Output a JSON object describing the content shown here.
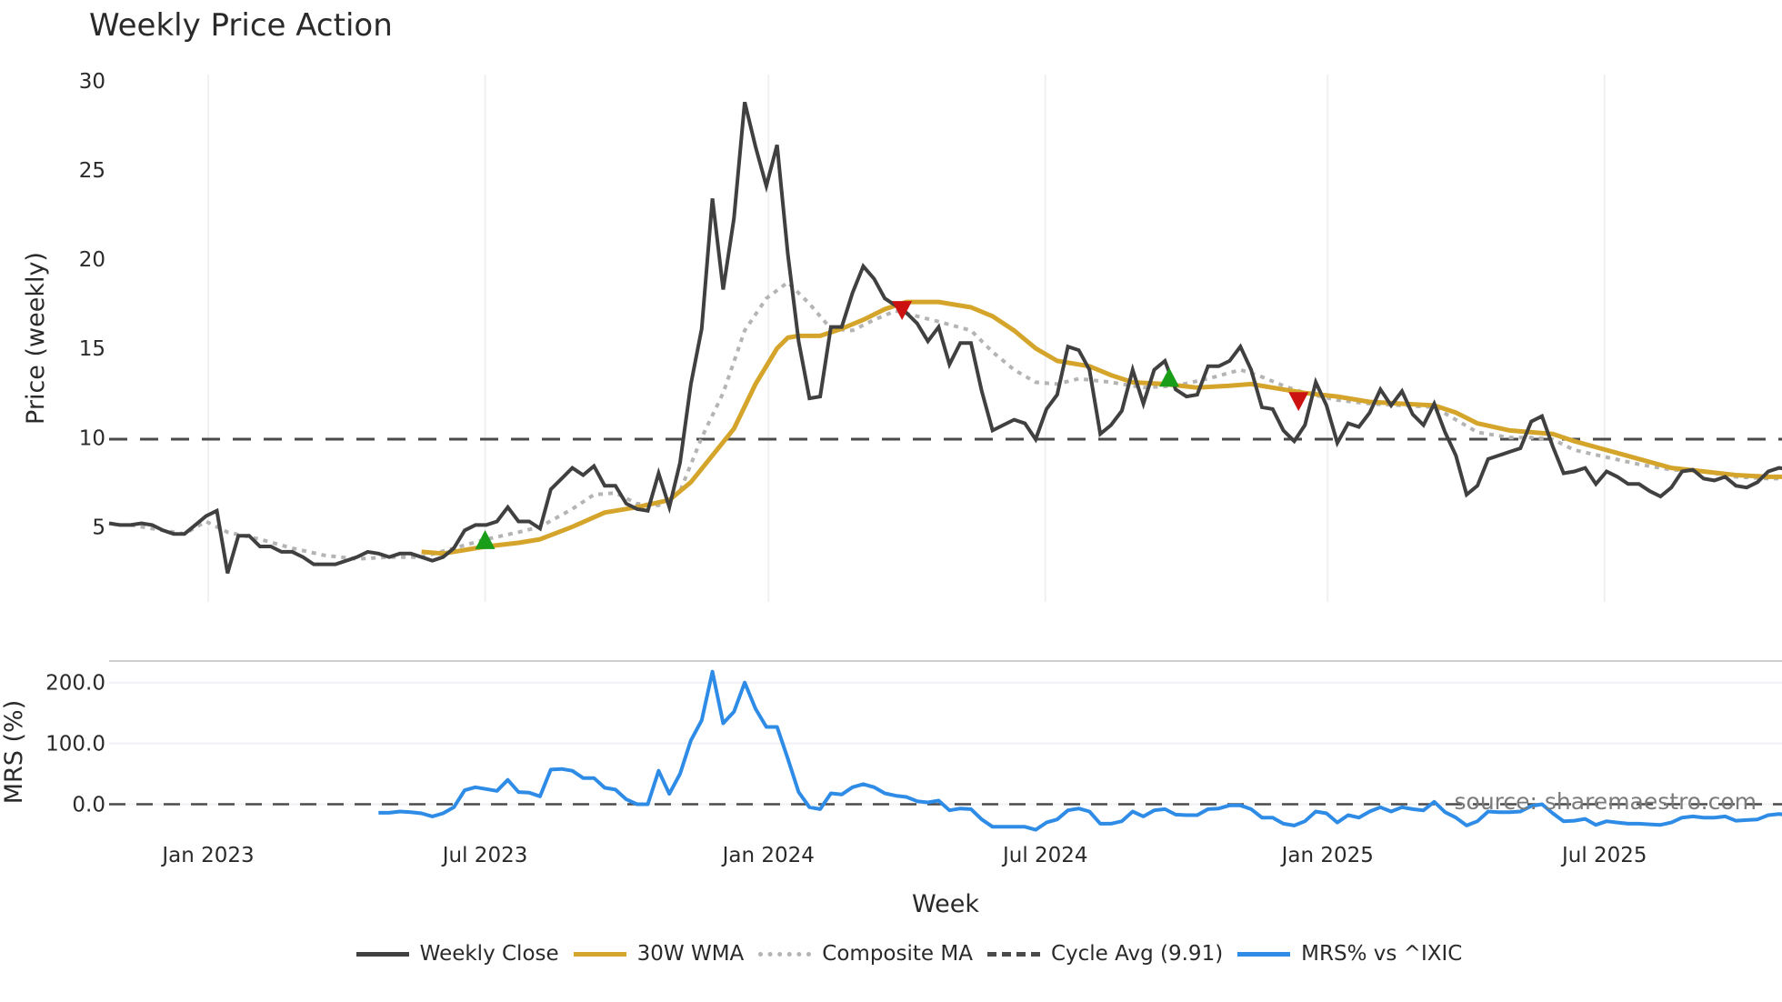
{
  "title": "Weekly Price Action",
  "watermark": "source: sharemaestro.com",
  "chart_data": [
    {
      "type": "line",
      "title": "Weekly Price Action",
      "xlabel": "Week",
      "ylabel": "Price (weekly)",
      "ylim": [
        0.5,
        30.5
      ],
      "yticks": [
        5,
        10,
        15,
        20,
        25,
        30
      ],
      "grid": true,
      "x_unit": "week_index",
      "x_ticks": [
        {
          "label": "Jan 2023",
          "week": 9.2
        },
        {
          "label": "Jul 2023",
          "week": 34.9
        },
        {
          "label": "Jan 2024",
          "week": 61.2
        },
        {
          "label": "Jul 2024",
          "week": 86.9
        },
        {
          "label": "Jan 2025",
          "week": 113.1
        },
        {
          "label": "Jul 2025",
          "week": 138.8
        }
      ],
      "series": [
        {
          "name": "Weekly Close",
          "color": "#404040",
          "style": "solid",
          "start_week": 0,
          "values": [
            5.2,
            5.1,
            5.1,
            5.2,
            5.1,
            4.8,
            4.6,
            4.6,
            5.1,
            5.6,
            5.9,
            2.4,
            4.5,
            4.5,
            3.9,
            3.9,
            3.6,
            3.6,
            3.3,
            2.9,
            2.9,
            2.9,
            3.1,
            3.3,
            3.6,
            3.5,
            3.3,
            3.5,
            3.5,
            3.3,
            3.1,
            3.3,
            3.8,
            4.8,
            5.1,
            5.1,
            5.3,
            6.1,
            5.3,
            5.3,
            4.9,
            7.1,
            7.7,
            8.3,
            7.9,
            8.4,
            7.3,
            7.3,
            6.3,
            6.0,
            5.9,
            8.0,
            6.1,
            8.6,
            13.0,
            16.1,
            23.4,
            18.3,
            22.3,
            28.8,
            26.3,
            24.1,
            26.4,
            20.3,
            15.4,
            12.2,
            12.3,
            16.2,
            16.2,
            18.1,
            19.6,
            18.9,
            17.8,
            17.4,
            17.0,
            16.4,
            15.4,
            16.2,
            14.1,
            15.3,
            15.3,
            12.6,
            10.4,
            10.7,
            11.0,
            10.8,
            9.9,
            11.6,
            12.4,
            15.1,
            14.9,
            13.8,
            10.2,
            10.7,
            11.5,
            13.8,
            11.9,
            13.8,
            14.3,
            12.7,
            12.3,
            12.4,
            14.0,
            14.0,
            14.3,
            15.1,
            13.8,
            11.7,
            11.6,
            10.4,
            9.8,
            10.7,
            13.1,
            11.8,
            9.7,
            10.8,
            10.6,
            11.4,
            12.7,
            11.8,
            12.6,
            11.3,
            10.7,
            11.9,
            10.3,
            9.0,
            6.8,
            7.3,
            8.8,
            9.0,
            9.2,
            9.4,
            10.9,
            11.2,
            9.5,
            8.0,
            8.1,
            8.3,
            7.4,
            8.1,
            7.8,
            7.4,
            7.4,
            7.0,
            6.7,
            7.2,
            8.1,
            8.2,
            7.7,
            7.6,
            7.8,
            7.3,
            7.2,
            7.5,
            8.1,
            8.3,
            8.2
          ]
        },
        {
          "name": "30W WMA",
          "color": "#d4a52a",
          "style": "solid",
          "points": [
            [
              29,
              3.6
            ],
            [
              31,
              3.5
            ],
            [
              33,
              3.7
            ],
            [
              35,
              3.9
            ],
            [
              38,
              4.1
            ],
            [
              40,
              4.3
            ],
            [
              43,
              5.0
            ],
            [
              46,
              5.8
            ],
            [
              49,
              6.1
            ],
            [
              52,
              6.5
            ],
            [
              54,
              7.5
            ],
            [
              56,
              9.0
            ],
            [
              58,
              10.5
            ],
            [
              60,
              13.0
            ],
            [
              62,
              15.0
            ],
            [
              63,
              15.6
            ],
            [
              64,
              15.7
            ],
            [
              66,
              15.7
            ],
            [
              68,
              16.1
            ],
            [
              70,
              16.6
            ],
            [
              72,
              17.2
            ],
            [
              74,
              17.6
            ],
            [
              77,
              17.6
            ],
            [
              80,
              17.3
            ],
            [
              82,
              16.8
            ],
            [
              84,
              16.0
            ],
            [
              86,
              15.0
            ],
            [
              88,
              14.3
            ],
            [
              91,
              14.0
            ],
            [
              93,
              13.5
            ],
            [
              95,
              13.1
            ],
            [
              98,
              13.0
            ],
            [
              101,
              12.8
            ],
            [
              104,
              12.9
            ],
            [
              106,
              13.0
            ],
            [
              109,
              12.7
            ],
            [
              111,
              12.5
            ],
            [
              114,
              12.3
            ],
            [
              117,
              12.0
            ],
            [
              120,
              11.9
            ],
            [
              123,
              11.8
            ],
            [
              125,
              11.4
            ],
            [
              127,
              10.8
            ],
            [
              130,
              10.4
            ],
            [
              132,
              10.3
            ],
            [
              134,
              10.2
            ],
            [
              136,
              9.8
            ],
            [
              139,
              9.3
            ],
            [
              142,
              8.8
            ],
            [
              145,
              8.3
            ],
            [
              148,
              8.1
            ],
            [
              151,
              7.9
            ],
            [
              154,
              7.8
            ],
            [
              156,
              7.8
            ]
          ]
        },
        {
          "name": "Composite MA",
          "color": "#b4b4b4",
          "style": "dotted",
          "points": [
            [
              2,
              5.1
            ],
            [
              5,
              4.8
            ],
            [
              7,
              4.6
            ],
            [
              9,
              5.3
            ],
            [
              11,
              4.7
            ],
            [
              14,
              4.3
            ],
            [
              17,
              3.8
            ],
            [
              20,
              3.4
            ],
            [
              23,
              3.2
            ],
            [
              26,
              3.3
            ],
            [
              29,
              3.3
            ],
            [
              32,
              3.8
            ],
            [
              35,
              4.3
            ],
            [
              38,
              4.7
            ],
            [
              40,
              5.0
            ],
            [
              43,
              6.0
            ],
            [
              45,
              6.8
            ],
            [
              47,
              6.9
            ],
            [
              49,
              6.3
            ],
            [
              51,
              6.2
            ],
            [
              53,
              7.0
            ],
            [
              55,
              10.0
            ],
            [
              57,
              12.5
            ],
            [
              59,
              16.0
            ],
            [
              61,
              17.8
            ],
            [
              63,
              18.7
            ],
            [
              65,
              17.5
            ],
            [
              67,
              16.1
            ],
            [
              69,
              16.0
            ],
            [
              71,
              16.6
            ],
            [
              73,
              17.1
            ],
            [
              75,
              16.8
            ],
            [
              77,
              16.5
            ],
            [
              80,
              16.0
            ],
            [
              82,
              14.8
            ],
            [
              84,
              13.8
            ],
            [
              86,
              13.1
            ],
            [
              88,
              13.0
            ],
            [
              90,
              13.3
            ],
            [
              93,
              13.1
            ],
            [
              96,
              12.8
            ],
            [
              99,
              12.9
            ],
            [
              102,
              13.3
            ],
            [
              105,
              13.8
            ],
            [
              107,
              13.4
            ],
            [
              109,
              12.9
            ],
            [
              111,
              12.5
            ],
            [
              114,
              12.1
            ],
            [
              117,
              11.9
            ],
            [
              120,
              11.8
            ],
            [
              123,
              11.7
            ],
            [
              125,
              11.0
            ],
            [
              127,
              10.3
            ],
            [
              130,
              10.0
            ],
            [
              132,
              10.0
            ],
            [
              134,
              9.9
            ],
            [
              136,
              9.3
            ],
            [
              139,
              8.9
            ],
            [
              142,
              8.5
            ],
            [
              145,
              8.2
            ],
            [
              148,
              8.1
            ],
            [
              151,
              7.8
            ],
            [
              154,
              7.7
            ],
            [
              156,
              7.7
            ]
          ]
        },
        {
          "name": "Cycle Avg (9.91)",
          "color": "#4a4a4a",
          "style": "dashed",
          "constant": 9.91
        }
      ],
      "markers": [
        {
          "type": "buy",
          "shape": "triangle-up",
          "color": "#1a9e1a",
          "week": 34.9,
          "value": 4.2
        },
        {
          "type": "sell",
          "shape": "triangle-down",
          "color": "#cc1111",
          "week": 73.6,
          "value": 17.2
        },
        {
          "type": "buy",
          "shape": "triangle-up",
          "color": "#1a9e1a",
          "week": 98.4,
          "value": 13.3
        },
        {
          "type": "sell",
          "shape": "triangle-down",
          "color": "#cc1111",
          "week": 110.4,
          "value": 12.1
        }
      ]
    },
    {
      "type": "line",
      "title": "",
      "xlabel": "Week",
      "ylabel": "MRS (%)",
      "ylim": [
        -60,
        235
      ],
      "yticks": [
        0,
        100,
        200
      ],
      "ytick_labels": [
        "0.0",
        "100.0",
        "200.0"
      ],
      "grid": true,
      "series": [
        {
          "name": "MRS% vs ^IXIC",
          "color": "#2e8ce6",
          "style": "solid",
          "start_week": 25,
          "values": [
            -14,
            -14,
            -12,
            -13,
            -15,
            -20,
            -15,
            -5,
            23,
            28,
            25,
            22,
            40,
            20,
            19,
            13,
            57,
            58,
            55,
            43,
            43,
            27,
            24,
            8,
            0,
            0,
            55,
            17,
            50,
            105,
            138,
            218,
            133,
            152,
            200,
            157,
            127,
            127,
            75,
            20,
            -5,
            -8,
            18,
            16,
            28,
            33,
            28,
            18,
            14,
            12,
            5,
            3,
            6,
            -10,
            -7,
            -8,
            -25,
            -37,
            -37,
            -37,
            -37,
            -42,
            -30,
            -25,
            -10,
            -7,
            -12,
            -32,
            -32,
            -28,
            -12,
            -20,
            -10,
            -8,
            -17,
            -18,
            -18,
            -8,
            -7,
            -2,
            -2,
            -8,
            -22,
            -22,
            -32,
            -35,
            -28,
            -12,
            -15,
            -30,
            -18,
            -22,
            -12,
            -5,
            -12,
            -5,
            -8,
            -10,
            4,
            -13,
            -22,
            -35,
            -28,
            -12,
            -13,
            -13,
            -12,
            -3,
            0,
            -15,
            -28,
            -27,
            -24,
            -34,
            -28,
            -30,
            -32,
            -32,
            -33,
            -34,
            -30,
            -22,
            -20,
            -22,
            -22,
            -20,
            -27,
            -26,
            -25,
            -18,
            -16,
            -18
          ]
        },
        {
          "name": "zero line",
          "color": "#4a4a4a",
          "style": "dashed",
          "constant": 0
        }
      ]
    }
  ],
  "legend": [
    {
      "label": "Weekly Close",
      "color": "#404040",
      "style": "solid"
    },
    {
      "label": "30W WMA",
      "color": "#d4a52a",
      "style": "solid"
    },
    {
      "label": "Composite MA",
      "color": "#b4b4b4",
      "style": "dotted"
    },
    {
      "label": "Cycle Avg (9.91)",
      "color": "#4a4a4a",
      "style": "dashed"
    },
    {
      "label": "MRS% vs ^IXIC",
      "color": "#2e8ce6",
      "style": "solid"
    }
  ]
}
